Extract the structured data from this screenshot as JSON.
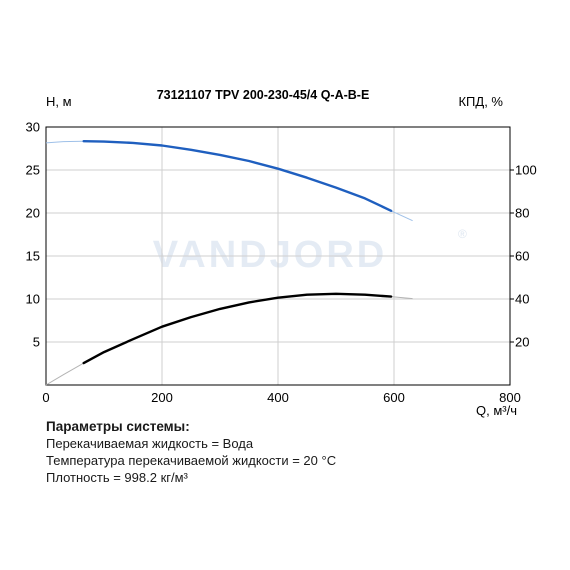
{
  "chart_data": {
    "type": "line",
    "title": "73121107 TPV 200-230-45/4 Q-A-B-E",
    "xlabel": "Q, м³/ч",
    "ylabel_left": "H, м",
    "ylabel_right": "КПД, %",
    "watermark": "VANDJORD",
    "watermark_mark": "®",
    "xlim": [
      0,
      800
    ],
    "ylim_left": [
      0,
      30
    ],
    "ylim_right": [
      0,
      120
    ],
    "x_ticks": [
      "0",
      "200",
      "400",
      "600",
      "800"
    ],
    "y_left_ticks": [
      "5",
      "10",
      "15",
      "20",
      "25",
      "30"
    ],
    "y_right_ticks": [
      "20",
      "40",
      "60",
      "80",
      "100"
    ],
    "grid": true,
    "series": [
      {
        "axis": "left",
        "color": "#1f5fbf",
        "extension_color": "#9ec0e8",
        "points": [
          [
            65,
            28.35
          ],
          [
            100,
            28.3
          ],
          [
            150,
            28.15
          ],
          [
            200,
            27.85
          ],
          [
            250,
            27.35
          ],
          [
            300,
            26.75
          ],
          [
            350,
            26.05
          ],
          [
            400,
            25.15
          ],
          [
            450,
            24.1
          ],
          [
            500,
            22.95
          ],
          [
            550,
            21.7
          ],
          [
            595,
            20.25
          ]
        ],
        "ext_before": [
          [
            0,
            28.15
          ],
          [
            30,
            28.3
          ],
          [
            65,
            28.35
          ]
        ],
        "ext_after": [
          [
            595,
            20.25
          ],
          [
            632,
            19.1
          ]
        ]
      },
      {
        "axis": "right",
        "color": "#000000",
        "extension_color": "#b4b4b4",
        "points": [
          [
            65,
            10.2
          ],
          [
            100,
            15.3
          ],
          [
            150,
            21.3
          ],
          [
            200,
            27.1
          ],
          [
            250,
            31.6
          ],
          [
            300,
            35.4
          ],
          [
            350,
            38.4
          ],
          [
            400,
            40.6
          ],
          [
            450,
            42.0
          ],
          [
            500,
            42.4
          ],
          [
            550,
            42.0
          ],
          [
            595,
            41.1
          ]
        ],
        "ext_before": [
          [
            0,
            0
          ],
          [
            30,
            4.8
          ],
          [
            65,
            10.2
          ]
        ],
        "ext_after": [
          [
            595,
            41.1
          ],
          [
            632,
            40.2
          ]
        ]
      }
    ]
  },
  "params": {
    "title": "Параметры системы:",
    "lines": [
      "Перекачиваемая жидкость = Вода",
      "Температура перекачиваемой жидкости = 20 °С",
      "Плотность = 998.2 кг/м³"
    ]
  }
}
